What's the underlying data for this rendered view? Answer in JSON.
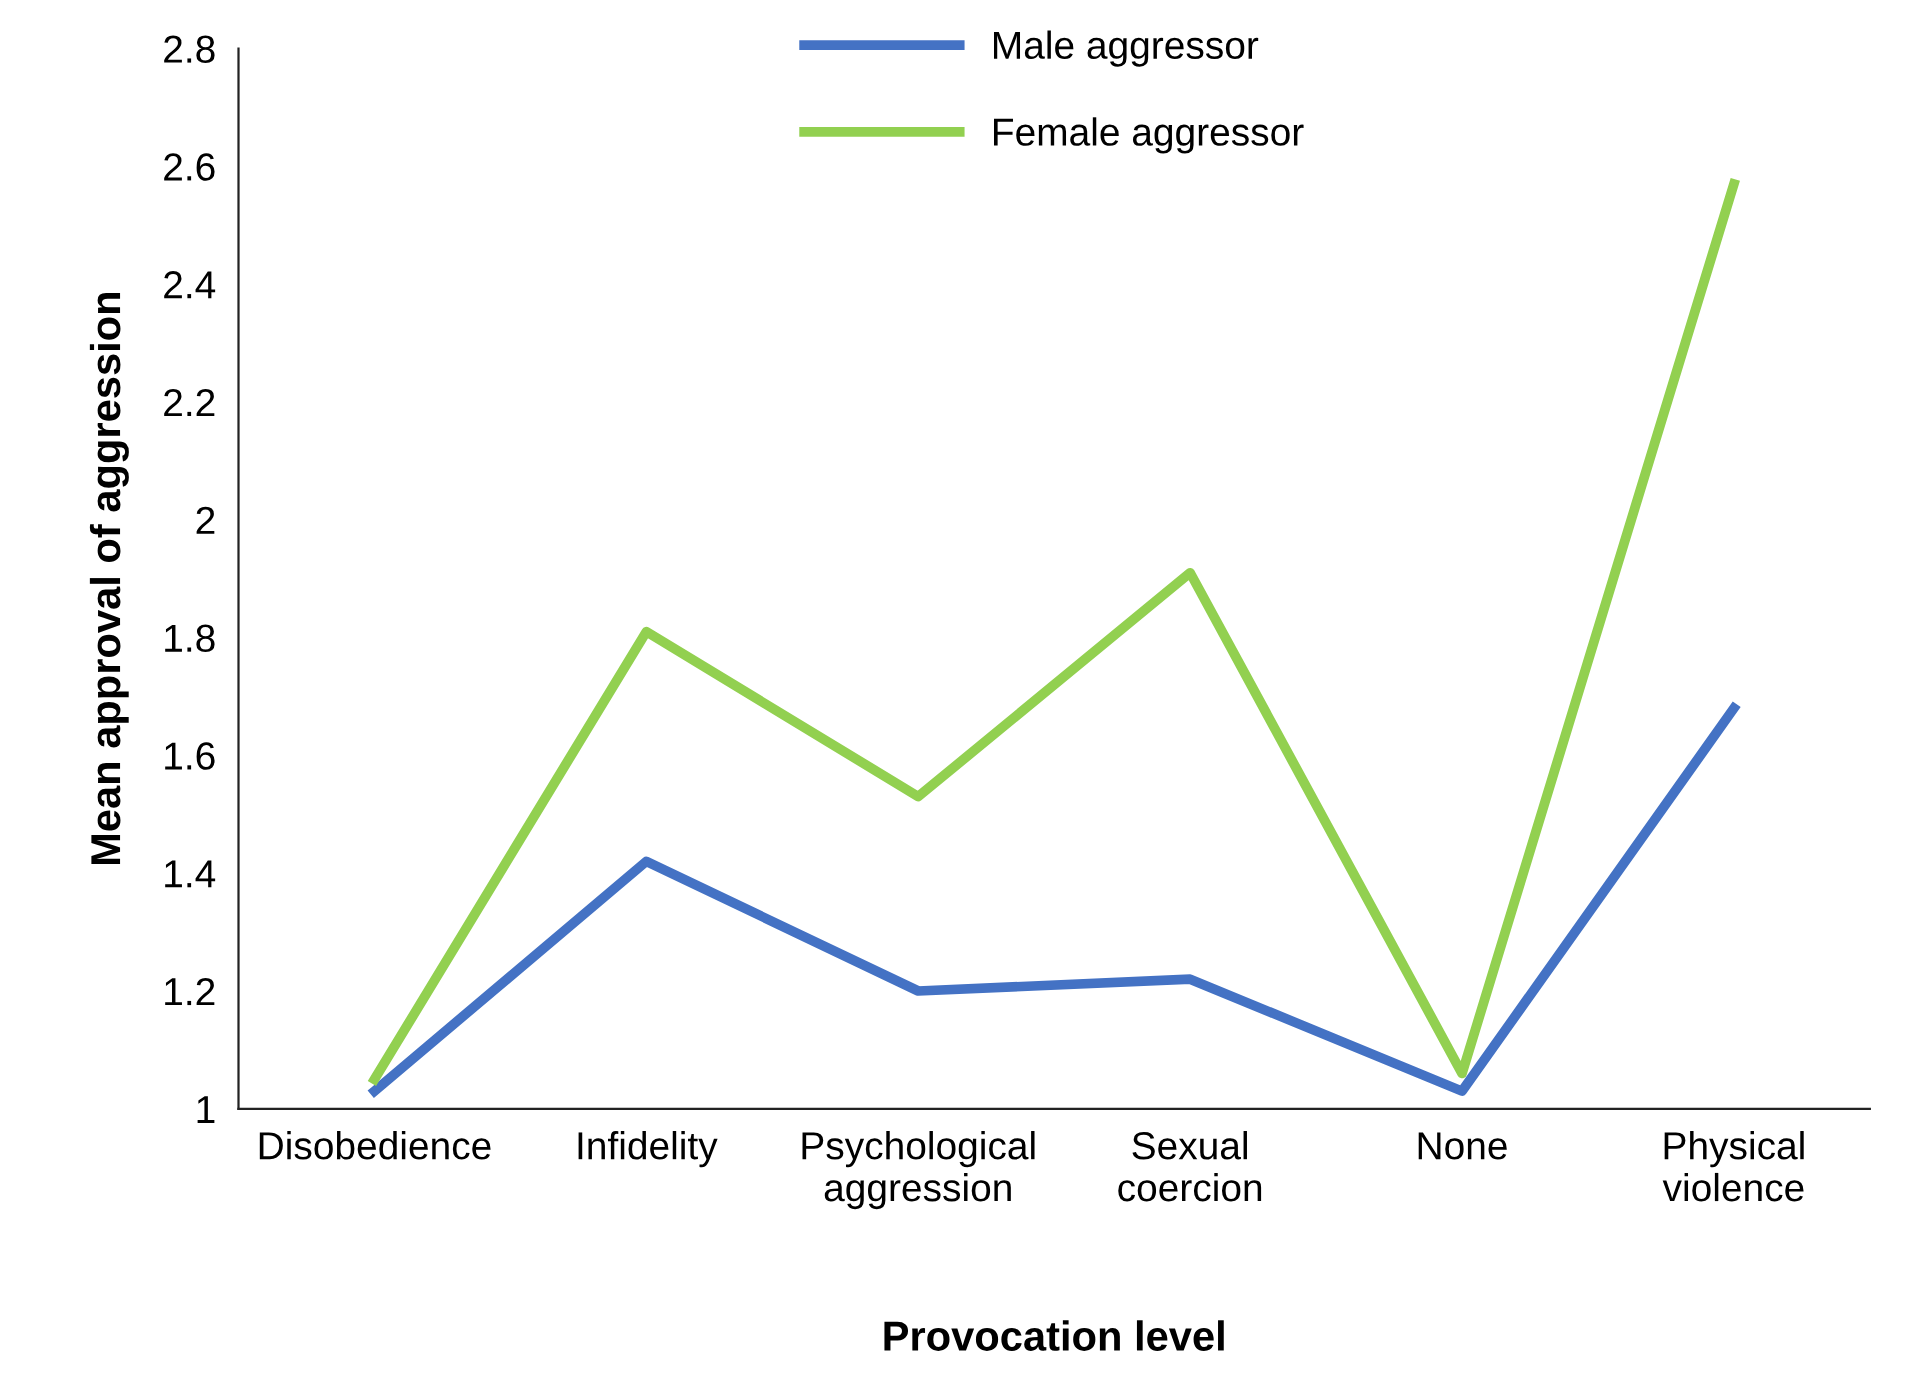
{
  "chart_data": {
    "type": "line",
    "xlabel": "Provocation level",
    "ylabel": "Mean approval of aggression",
    "categories": [
      "Disobedience",
      "Infidelity",
      "Psychological\naggression",
      "Sexual\ncoercion",
      "None",
      "Physical\nviolence"
    ],
    "series": [
      {
        "name": "Male aggressor",
        "color": "#4472c4",
        "values": [
          1.03,
          1.42,
          1.2,
          1.22,
          1.03,
          1.68
        ]
      },
      {
        "name": "Female aggressor",
        "color": "#92d050",
        "values": [
          1.05,
          1.81,
          1.53,
          1.91,
          1.06,
          2.57
        ]
      }
    ],
    "ylim": [
      1,
      2.8
    ],
    "yticks": [
      1,
      1.2,
      1.4,
      1.6,
      1.8,
      2,
      2.2,
      2.4,
      2.6,
      2.8
    ],
    "grid": false,
    "legend": "top",
    "marker": "none",
    "line_style": "solid"
  }
}
